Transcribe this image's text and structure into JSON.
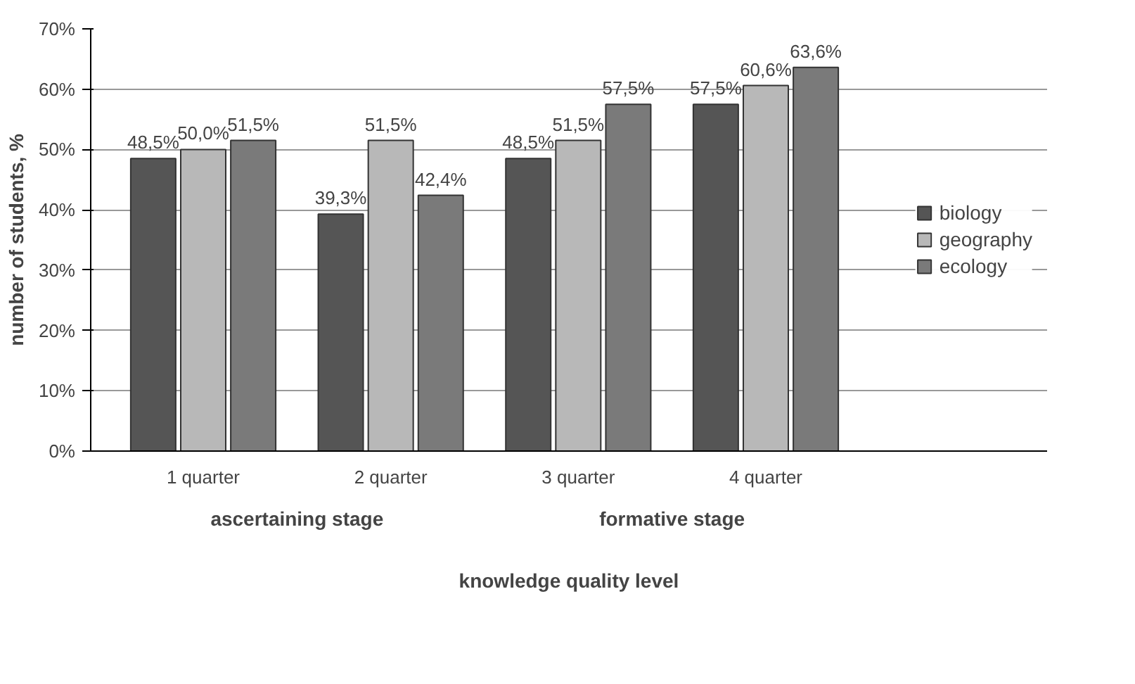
{
  "chart_data": {
    "type": "bar",
    "ylabel": "number of students, %",
    "xlabel": "knowledge quality level",
    "categories": [
      "1 quarter",
      "2 quarter",
      "3 quarter",
      "4 quarter"
    ],
    "series": [
      {
        "name": "biology",
        "color": "#555555",
        "values": [
          48.5,
          39.3,
          48.5,
          57.5
        ],
        "value_labels": [
          "48,5%",
          "39,3%",
          "48,5%",
          "57,5%"
        ]
      },
      {
        "name": "geography",
        "color": "#b8b8b8",
        "values": [
          50.0,
          51.5,
          51.5,
          60.6
        ],
        "value_labels": [
          "50,0%",
          "51,5%",
          "51,5%",
          "60,6%"
        ]
      },
      {
        "name": "ecology",
        "color": "#7a7a7a",
        "values": [
          51.5,
          42.4,
          57.5,
          63.6
        ],
        "value_labels": [
          "51,5%",
          "42,4%",
          "57,5%",
          "63,6%"
        ]
      }
    ],
    "ylim": [
      0,
      70
    ],
    "yticks": [
      {
        "value": 0,
        "label": "0%"
      },
      {
        "value": 10,
        "label": "10%"
      },
      {
        "value": 20,
        "label": "20%"
      },
      {
        "value": 30,
        "label": "30%"
      },
      {
        "value": 40,
        "label": "40%"
      },
      {
        "value": 50,
        "label": "50%"
      },
      {
        "value": 60,
        "label": "60%"
      },
      {
        "value": 70,
        "label": "70%"
      }
    ],
    "grid": "y",
    "legend": "right",
    "annotations": [
      "ascertaining stage",
      "formative stage"
    ]
  }
}
